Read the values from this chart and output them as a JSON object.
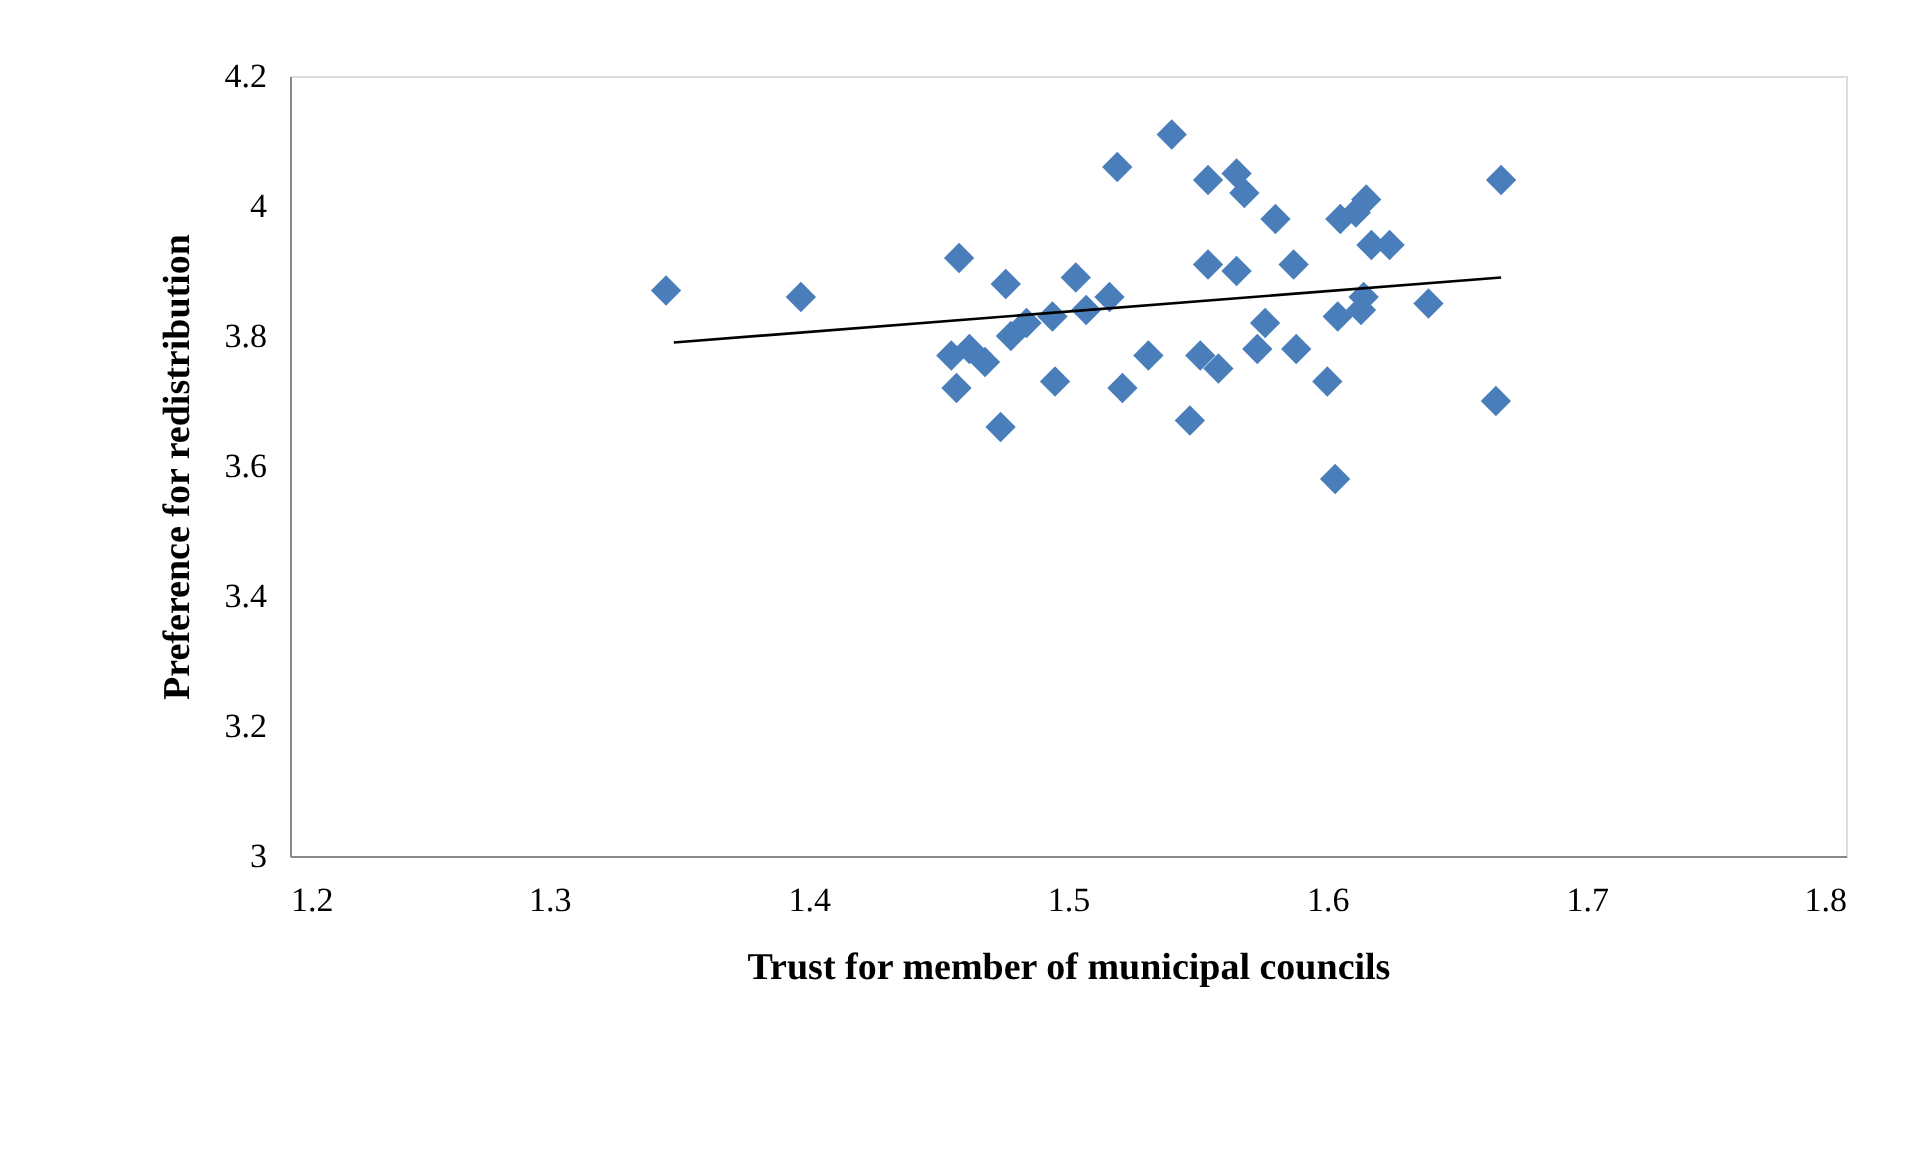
{
  "chart_data": {
    "type": "scatter",
    "xlabel": "Trust for member of municipal councils",
    "ylabel": "Preference for redistribution",
    "xlim": [
      1.2,
      1.8
    ],
    "xticks": [
      1.2,
      1.3,
      1.4,
      1.5,
      1.6,
      1.7,
      1.8
    ],
    "ylim": [
      3,
      4.2
    ],
    "yticks": [
      3,
      3.2,
      3.4,
      3.6,
      3.8,
      4,
      4.2
    ],
    "series": [
      {
        "marker": "diamond",
        "color": "#4a7ebb",
        "x": [
          1.345,
          1.397,
          1.458,
          1.455,
          1.457,
          1.462,
          1.468,
          1.474,
          1.476,
          1.478,
          1.484,
          1.494,
          1.495,
          1.503,
          1.507,
          1.516,
          1.519,
          1.521,
          1.531,
          1.54,
          1.547,
          1.551,
          1.554,
          1.554,
          1.558,
          1.565,
          1.565,
          1.568,
          1.573,
          1.576,
          1.58,
          1.587,
          1.588,
          1.6,
          1.603,
          1.604,
          1.605,
          1.611,
          1.613,
          1.614,
          1.615,
          1.617,
          1.624,
          1.639,
          1.665,
          1.667
        ],
        "values": [
          3.87,
          3.86,
          3.92,
          3.77,
          3.72,
          3.78,
          3.76,
          3.66,
          3.88,
          3.8,
          3.82,
          3.83,
          3.73,
          3.89,
          3.84,
          3.86,
          4.06,
          3.72,
          3.77,
          4.11,
          3.67,
          3.77,
          4.04,
          3.91,
          3.75,
          3.9,
          4.05,
          4.02,
          3.78,
          3.82,
          3.98,
          3.91,
          3.78,
          3.73,
          3.58,
          3.83,
          3.98,
          3.99,
          3.84,
          3.86,
          4.01,
          3.94,
          3.94,
          3.85,
          3.7,
          4.04
        ]
      },
      {
        "type": "line",
        "color": "#000000",
        "x": [
          1.348,
          1.667
        ],
        "values": [
          3.79,
          3.89
        ]
      }
    ]
  }
}
